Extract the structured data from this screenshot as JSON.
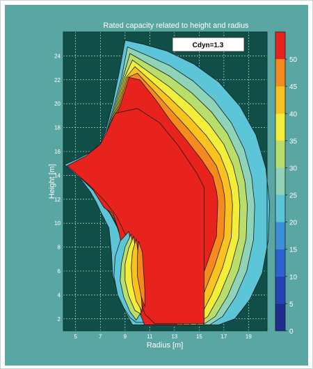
{
  "chart_data": {
    "type": "contour",
    "title": "Rated capacity related to height and radius",
    "annotation": "Cdyn=1.3",
    "xlabel": "Radius [m]",
    "ylabel": "Height [m]",
    "xlim": [
      4,
      20.5
    ],
    "ylim": [
      1,
      26
    ],
    "xticks": [
      5,
      7,
      9,
      11,
      13,
      15,
      17,
      19
    ],
    "yticks": [
      2,
      4,
      6,
      8,
      10,
      12,
      14,
      16,
      18,
      20,
      22,
      24
    ],
    "grid": true,
    "colorbar": {
      "range": [
        0,
        55
      ],
      "ticks": [
        0,
        5,
        10,
        15,
        20,
        25,
        30,
        35,
        40,
        45,
        50
      ],
      "bands": [
        {
          "from": 0,
          "to": 5,
          "color": "#1c2d8c"
        },
        {
          "from": 5,
          "to": 10,
          "color": "#2143b3"
        },
        {
          "from": 10,
          "to": 15,
          "color": "#2a63d1"
        },
        {
          "from": 15,
          "to": 20,
          "color": "#3b8fd8"
        },
        {
          "from": 20,
          "to": 25,
          "color": "#5cc6d8"
        },
        {
          "from": 25,
          "to": 30,
          "color": "#8fd3b8"
        },
        {
          "from": 30,
          "to": 35,
          "color": "#b9de6c"
        },
        {
          "from": 35,
          "to": 40,
          "color": "#f2ee3a"
        },
        {
          "from": 40,
          "to": 45,
          "color": "#f9c21f"
        },
        {
          "from": 45,
          "to": 50,
          "color": "#f58a1f"
        },
        {
          "from": 50,
          "to": 55,
          "color": "#e8231e"
        }
      ]
    },
    "colors": {
      "background": "#5aa6a2",
      "plot_area": "#0f4f47",
      "gridline": "#e8f0ee",
      "contour_line": "#1a1a1a"
    }
  }
}
